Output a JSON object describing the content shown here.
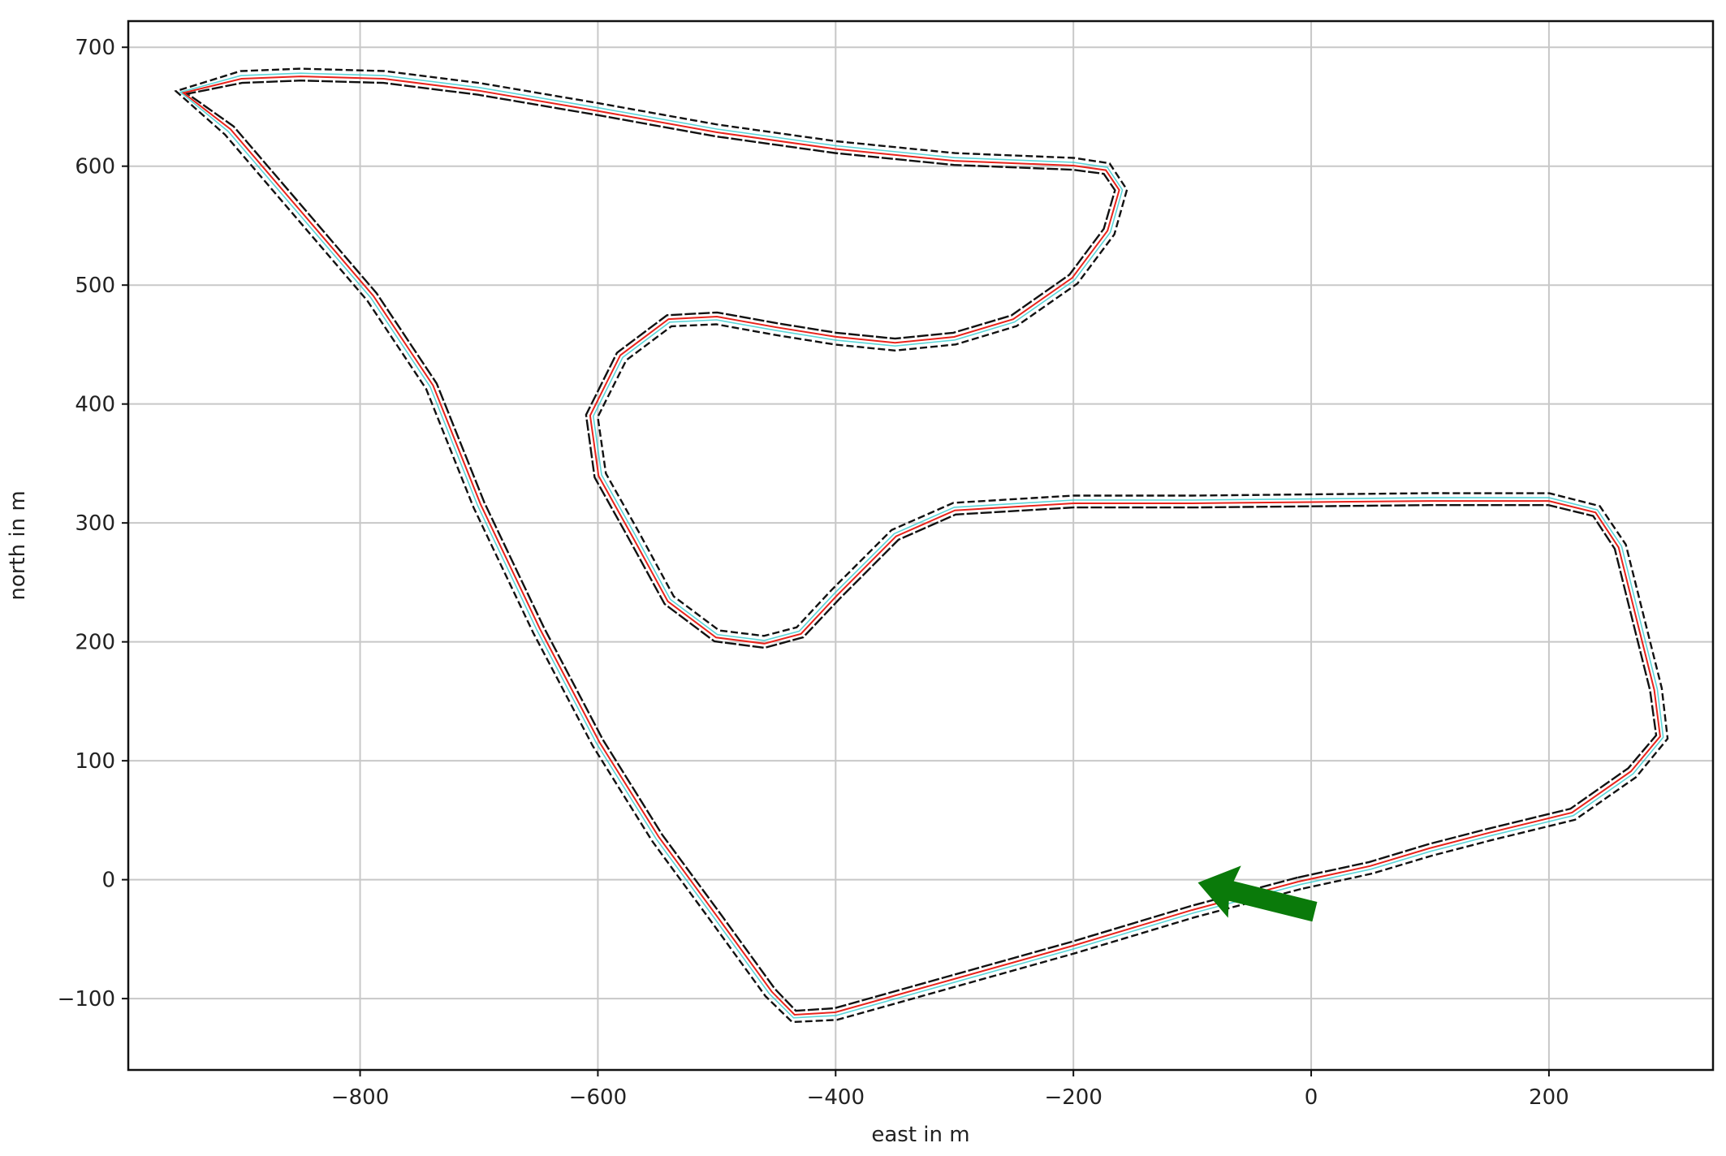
{
  "chart_data": {
    "type": "line",
    "title": "",
    "xlabel": "east in m",
    "ylabel": "north in m",
    "xlim": [
      -995,
      338
    ],
    "ylim": [
      -160,
      722
    ],
    "grid": true,
    "xticks": [
      -800,
      -600,
      -400,
      -200,
      0,
      200
    ],
    "yticks": [
      -100,
      0,
      100,
      200,
      300,
      400,
      500,
      600,
      700
    ],
    "xtick_labels": [
      "−800",
      "−600",
      "−400",
      "−200",
      "0",
      "200"
    ],
    "ytick_labels": [
      "−100",
      "0",
      "100",
      "200",
      "300",
      "400",
      "500",
      "600",
      "700"
    ],
    "colors": {
      "boundary": "#111111",
      "raceline": "#e8241c",
      "raceline_alt": "#17c3c8",
      "vehicle": "#0a7a0a"
    },
    "centerline": [
      [
        -10,
        -3
      ],
      [
        -100,
        -27
      ],
      [
        -200,
        -57
      ],
      [
        -300,
        -85
      ],
      [
        -400,
        -113
      ],
      [
        -435,
        -115
      ],
      [
        -455,
        -95
      ],
      [
        -500,
        -33
      ],
      [
        -550,
        35
      ],
      [
        -600,
        115
      ],
      [
        -650,
        210
      ],
      [
        -700,
        315
      ],
      [
        -740,
        415
      ],
      [
        -790,
        490
      ],
      [
        -850,
        560
      ],
      [
        -910,
        630
      ],
      [
        -950,
        662
      ],
      [
        -900,
        675
      ],
      [
        -850,
        677
      ],
      [
        -780,
        675
      ],
      [
        -700,
        665
      ],
      [
        -600,
        648
      ],
      [
        -500,
        630
      ],
      [
        -400,
        616
      ],
      [
        -300,
        606
      ],
      [
        -200,
        602
      ],
      [
        -172,
        598
      ],
      [
        -160,
        580
      ],
      [
        -170,
        545
      ],
      [
        -200,
        505
      ],
      [
        -250,
        470
      ],
      [
        -300,
        455
      ],
      [
        -350,
        450
      ],
      [
        -400,
        455
      ],
      [
        -450,
        463
      ],
      [
        -500,
        472
      ],
      [
        -540,
        470
      ],
      [
        -580,
        440
      ],
      [
        -605,
        390
      ],
      [
        -598,
        340
      ],
      [
        -570,
        290
      ],
      [
        -540,
        235
      ],
      [
        -500,
        205
      ],
      [
        -460,
        200
      ],
      [
        -430,
        208
      ],
      [
        -400,
        240
      ],
      [
        -350,
        290
      ],
      [
        -300,
        312
      ],
      [
        -200,
        318
      ],
      [
        -100,
        318
      ],
      [
        0,
        319
      ],
      [
        100,
        320
      ],
      [
        200,
        320
      ],
      [
        240,
        310
      ],
      [
        260,
        280
      ],
      [
        275,
        220
      ],
      [
        290,
        160
      ],
      [
        295,
        120
      ],
      [
        270,
        90
      ],
      [
        220,
        55
      ],
      [
        150,
        38
      ],
      [
        100,
        25
      ],
      [
        50,
        10
      ],
      [
        -10,
        -3
      ]
    ],
    "track_half_width_m": 5,
    "vehicle": {
      "shape": "arrow",
      "east": -45,
      "north": -15,
      "heading": "west"
    }
  }
}
